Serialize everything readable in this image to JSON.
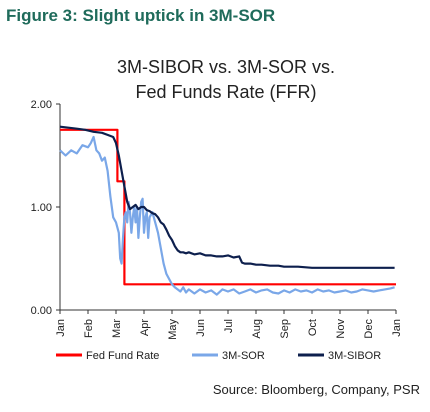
{
  "figure_title": "Figure 3: Slight uptick in 3M-SOR",
  "source": "Source: Bloomberg, Company, PSR",
  "colors": {
    "ffr": "#ff0000",
    "sor": "#7aa7e8",
    "sibor": "#0d1f4d",
    "title": "#1f6b5b"
  },
  "chart_data": {
    "type": "line",
    "title_lines": [
      "3M-SIBOR vs. 3M-SOR vs.",
      "Fed Funds Rate (FFR)"
    ],
    "xlabel": "",
    "ylabel": "",
    "ylim": [
      0,
      2.0
    ],
    "xlim": [
      0,
      12
    ],
    "yticks": [
      0.0,
      1.0,
      2.0
    ],
    "ytick_labels": [
      "0.00",
      "1.00",
      "2.00"
    ],
    "xticks": [
      0,
      1,
      2,
      3,
      4,
      5,
      6,
      7,
      8,
      9,
      10,
      11,
      12
    ],
    "xtick_labels": [
      "Jan",
      "Feb",
      "Mar",
      "Apr",
      "May",
      "Jun",
      "Jul",
      "Aug",
      "Sep",
      "Oct",
      "Nov",
      "Dec",
      "Jan"
    ],
    "grid": false,
    "legend_position": "bottom",
    "series": [
      {
        "name": "Fed Fund Rate",
        "color": "#ff0000",
        "x": [
          0,
          2.05,
          2.05,
          2.3,
          2.3,
          12
        ],
        "y": [
          1.75,
          1.75,
          1.25,
          1.25,
          0.25,
          0.25
        ]
      },
      {
        "name": "3M-SOR",
        "color": "#7aa7e8",
        "x": [
          0,
          0.2,
          0.4,
          0.6,
          0.8,
          1.0,
          1.1,
          1.2,
          1.3,
          1.4,
          1.5,
          1.6,
          1.7,
          1.8,
          1.9,
          2.0,
          2.1,
          2.15,
          2.2,
          2.25,
          2.3,
          2.35,
          2.4,
          2.45,
          2.5,
          2.55,
          2.6,
          2.65,
          2.7,
          2.75,
          2.8,
          2.85,
          2.9,
          2.95,
          3.0,
          3.05,
          3.1,
          3.15,
          3.2,
          3.3,
          3.4,
          3.5,
          3.6,
          3.7,
          3.8,
          3.9,
          4.0,
          4.1,
          4.2,
          4.3,
          4.4,
          4.5,
          4.6,
          4.8,
          5.0,
          5.2,
          5.4,
          5.6,
          5.8,
          6.0,
          6.2,
          6.4,
          6.6,
          6.8,
          7.0,
          7.2,
          7.4,
          7.6,
          7.8,
          8.0,
          8.2,
          8.4,
          8.6,
          8.8,
          9.0,
          9.2,
          9.4,
          9.6,
          9.8,
          10.0,
          10.2,
          10.4,
          10.6,
          10.8,
          11.0,
          11.2,
          11.4,
          11.6,
          11.8,
          11.95
        ],
        "y": [
          1.55,
          1.5,
          1.55,
          1.52,
          1.6,
          1.58,
          1.62,
          1.68,
          1.55,
          1.52,
          1.45,
          1.48,
          1.35,
          1.1,
          0.9,
          0.85,
          0.75,
          0.5,
          0.45,
          0.7,
          0.9,
          0.95,
          0.85,
          1.05,
          0.95,
          0.75,
          0.9,
          1.0,
          0.85,
          1.0,
          0.7,
          0.9,
          1.05,
          1.08,
          0.75,
          0.9,
          0.95,
          0.7,
          0.9,
          0.95,
          0.85,
          0.75,
          0.6,
          0.45,
          0.35,
          0.3,
          0.25,
          0.22,
          0.2,
          0.18,
          0.22,
          0.17,
          0.2,
          0.16,
          0.2,
          0.17,
          0.19,
          0.15,
          0.2,
          0.18,
          0.2,
          0.16,
          0.18,
          0.2,
          0.17,
          0.19,
          0.2,
          0.17,
          0.16,
          0.19,
          0.17,
          0.2,
          0.18,
          0.19,
          0.17,
          0.2,
          0.18,
          0.19,
          0.17,
          0.18,
          0.19,
          0.17,
          0.18,
          0.2,
          0.19,
          0.18,
          0.19,
          0.2,
          0.21,
          0.22
        ]
      },
      {
        "name": "3M-SIBOR",
        "color": "#0d1f4d",
        "x": [
          0,
          0.3,
          0.6,
          0.9,
          1.2,
          1.5,
          1.7,
          1.9,
          2.0,
          2.1,
          2.2,
          2.3,
          2.4,
          2.5,
          2.6,
          2.7,
          2.8,
          2.9,
          3.0,
          3.1,
          3.2,
          3.3,
          3.4,
          3.5,
          3.6,
          3.7,
          3.8,
          3.9,
          4.0,
          4.1,
          4.2,
          4.3,
          4.4,
          4.5,
          4.6,
          4.8,
          5.0,
          5.2,
          5.4,
          5.6,
          5.8,
          6.0,
          6.2,
          6.4,
          6.5,
          6.6,
          6.8,
          7.0,
          7.2,
          7.5,
          7.8,
          8.0,
          8.5,
          9.0,
          9.5,
          10.0,
          10.5,
          11.0,
          11.5,
          11.95
        ],
        "y": [
          1.78,
          1.77,
          1.76,
          1.75,
          1.73,
          1.72,
          1.7,
          1.68,
          1.62,
          1.5,
          1.35,
          1.2,
          1.05,
          0.98,
          1.0,
          1.02,
          0.98,
          1.0,
          1.0,
          0.97,
          0.96,
          0.94,
          0.93,
          0.9,
          0.85,
          0.83,
          0.78,
          0.72,
          0.68,
          0.62,
          0.58,
          0.56,
          0.56,
          0.55,
          0.56,
          0.54,
          0.55,
          0.53,
          0.53,
          0.52,
          0.52,
          0.53,
          0.51,
          0.52,
          0.46,
          0.45,
          0.45,
          0.44,
          0.44,
          0.43,
          0.43,
          0.42,
          0.42,
          0.41,
          0.41,
          0.41,
          0.41,
          0.41,
          0.41,
          0.41
        ]
      }
    ]
  }
}
